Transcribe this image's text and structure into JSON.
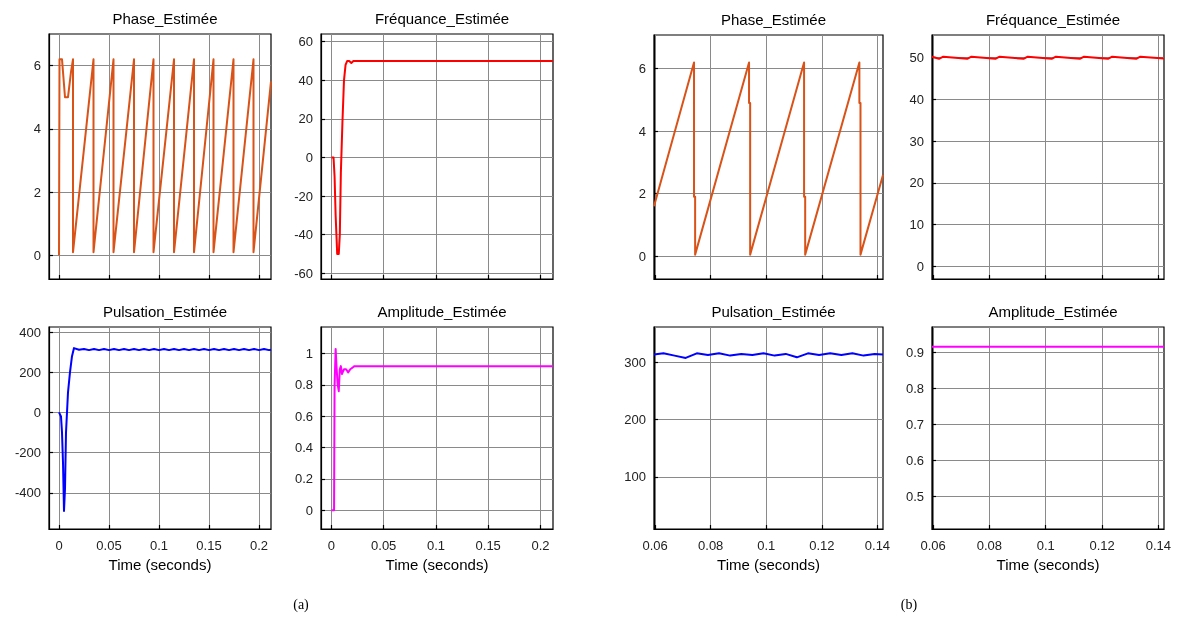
{
  "chart_data": [
    {
      "type": "line",
      "title": "Phase_Estimée",
      "color": "#d95319",
      "marker": "none",
      "grid": true,
      "tick_labels": "y",
      "xlim": [
        -0.01,
        0.212
      ],
      "xticks": [
        0,
        0.05,
        0.1,
        0.15,
        0.2
      ],
      "ylim": [
        -0.75,
        7
      ],
      "yticks": [
        0,
        2,
        4,
        6
      ],
      "x": [
        0,
        0.0005,
        0.003,
        0.006,
        0.009,
        0.012,
        0.014,
        0.014,
        0.0345,
        0.0345,
        0.0545,
        0.0545,
        0.075,
        0.075,
        0.0945,
        0.0945,
        0.115,
        0.115,
        0.135,
        0.135,
        0.1545,
        0.1545,
        0.1745,
        0.1745,
        0.1945,
        0.1945,
        0.212
      ],
      "values": [
        0,
        6.2,
        6.2,
        5.0,
        5.0,
        5.8,
        6.2,
        0.1,
        6.2,
        0.1,
        6.2,
        0.1,
        6.2,
        0.1,
        6.2,
        0.1,
        6.2,
        0.1,
        6.2,
        0.1,
        6.2,
        0.1,
        6.2,
        0.1,
        6.2,
        0.1,
        5.5
      ]
    },
    {
      "type": "line",
      "title": "Fréquance_Estimée",
      "color": "#ff0000",
      "marker": "none",
      "grid": true,
      "tick_labels": "y",
      "xlim": [
        -0.01,
        0.212
      ],
      "xticks": [
        0,
        0.05,
        0.1,
        0.15,
        0.2
      ],
      "ylim": [
        -63,
        64
      ],
      "yticks": [
        -60,
        -40,
        -20,
        0,
        20,
        40,
        60
      ],
      "x": [
        0,
        0.002,
        0.003,
        0.004,
        0.0055,
        0.007,
        0.008,
        0.009,
        0.0105,
        0.012,
        0.0135,
        0.015,
        0.017,
        0.019,
        0.021,
        0.212
      ],
      "values": [
        0,
        0,
        -10,
        -30,
        -50,
        -50,
        -40,
        -8,
        18,
        40,
        48,
        50,
        50,
        49,
        50,
        50
      ]
    },
    {
      "type": "line",
      "title": "Pulsation_Estimée",
      "xlabel": "Time (seconds)",
      "color": "#0000ff",
      "marker": "none",
      "grid": true,
      "xlim": [
        -0.01,
        0.212
      ],
      "xticks": [
        0,
        0.05,
        0.1,
        0.15,
        0.2
      ],
      "ylim": [
        -580,
        425
      ],
      "yticks": [
        -400,
        -200,
        0,
        200,
        400
      ],
      "annotations": [
        "(a)"
      ],
      "x": [
        0,
        0.002,
        0.003,
        0.004,
        0.005,
        0.006,
        0.007,
        0.009,
        0.011,
        0.013,
        0.015,
        0.02,
        0.025,
        0.03,
        0.035,
        0.04,
        0.045,
        0.05,
        0.055,
        0.06,
        0.065,
        0.07,
        0.075,
        0.08,
        0.085,
        0.09,
        0.095,
        0.1,
        0.105,
        0.11,
        0.115,
        0.12,
        0.125,
        0.13,
        0.135,
        0.14,
        0.145,
        0.15,
        0.155,
        0.16,
        0.165,
        0.17,
        0.175,
        0.18,
        0.185,
        0.19,
        0.195,
        0.2,
        0.205,
        0.21,
        0.212
      ],
      "values": [
        0,
        -20,
        -100,
        -250,
        -490,
        -380,
        -100,
        100,
        200,
        280,
        320,
        312,
        316,
        310,
        316,
        310,
        316,
        310,
        316,
        310,
        316,
        310,
        316,
        310,
        316,
        310,
        316,
        310,
        316,
        310,
        316,
        310,
        316,
        310,
        316,
        310,
        316,
        310,
        316,
        310,
        316,
        310,
        316,
        310,
        316,
        310,
        316,
        310,
        316,
        310,
        312
      ]
    },
    {
      "type": "line",
      "title": "Amplitude_Estimée",
      "xlabel": "Time (seconds)",
      "color": "#ff00ff",
      "marker": "none",
      "grid": true,
      "xlim": [
        -0.01,
        0.212
      ],
      "xticks": [
        0,
        0.05,
        0.1,
        0.15,
        0.2
      ],
      "ylim": [
        -0.12,
        1.17
      ],
      "yticks": [
        0,
        0.2,
        0.4,
        0.6,
        0.8,
        1
      ],
      "x": [
        0,
        0.0025,
        0.003,
        0.004,
        0.005,
        0.006,
        0.007,
        0.008,
        0.009,
        0.01,
        0.012,
        0.014,
        0.016,
        0.018,
        0.02,
        0.022,
        0.025,
        0.212
      ],
      "values": [
        0,
        0,
        0.8,
        1.03,
        0.9,
        0.8,
        0.76,
        0.9,
        0.92,
        0.87,
        0.9,
        0.9,
        0.88,
        0.9,
        0.91,
        0.92,
        0.92,
        0.92
      ]
    },
    {
      "type": "line",
      "title": "Phase_Estimée",
      "color": "#d95319",
      "marker": "none",
      "grid": true,
      "tick_labels": "y",
      "xlim": [
        0.0596,
        0.142
      ],
      "xticks": [
        0.06,
        0.08,
        0.1,
        0.12,
        0.14
      ],
      "ylim": [
        -0.73,
        7.08
      ],
      "yticks": [
        0,
        2,
        4,
        6
      ],
      "x": [
        0.0596,
        0.074,
        0.074,
        0.0744,
        0.0744,
        0.0938,
        0.0938,
        0.0942,
        0.0942,
        0.1136,
        0.1136,
        0.114,
        0.114,
        0.1335,
        0.1335,
        0.1339,
        0.1339,
        0.142
      ],
      "values": [
        1.6,
        6.2,
        1.9,
        1.9,
        0.05,
        6.2,
        4.9,
        4.9,
        0.05,
        6.2,
        1.9,
        1.9,
        0.05,
        6.2,
        4.9,
        4.9,
        0.05,
        2.6
      ]
    },
    {
      "type": "line",
      "title": "Fréquance_Estimée",
      "color": "#ff0000",
      "marker": "none",
      "grid": true,
      "tick_labels": "y",
      "xlim": [
        0.0596,
        0.142
      ],
      "xticks": [
        0.06,
        0.08,
        0.1,
        0.12,
        0.14
      ],
      "ylim": [
        -3,
        55.4
      ],
      "yticks": [
        0,
        10,
        20,
        30,
        40,
        50
      ],
      "x": [
        0.0596,
        0.0621,
        0.0636,
        0.0721,
        0.0736,
        0.0821,
        0.0836,
        0.0921,
        0.0936,
        0.1021,
        0.1036,
        0.1121,
        0.1136,
        0.1221,
        0.1236,
        0.1321,
        0.1336,
        0.142
      ],
      "values": [
        50.2,
        49.7,
        50.2,
        49.7,
        50.2,
        49.7,
        50.2,
        49.7,
        50.2,
        49.7,
        50.2,
        49.7,
        50.2,
        49.7,
        50.2,
        49.7,
        50.2,
        49.8
      ]
    },
    {
      "type": "line",
      "title": "Pulsation_Estimée",
      "xlabel": "Time (seconds)",
      "color": "#0000ff",
      "marker": "none",
      "grid": true,
      "xlim": [
        0.0596,
        0.142
      ],
      "xticks": [
        0.06,
        0.08,
        0.1,
        0.12,
        0.14
      ],
      "ylim": [
        9,
        362
      ],
      "yticks": [
        100,
        200,
        300
      ],
      "annotations": [
        "(b)"
      ],
      "x": [
        0.0596,
        0.063,
        0.067,
        0.071,
        0.075,
        0.079,
        0.083,
        0.087,
        0.091,
        0.095,
        0.099,
        0.103,
        0.107,
        0.111,
        0.115,
        0.119,
        0.123,
        0.127,
        0.131,
        0.135,
        0.139,
        0.142
      ],
      "values": [
        314,
        316,
        312,
        308,
        316,
        313,
        316,
        312,
        315,
        313,
        316,
        312,
        315,
        309,
        316,
        313,
        316,
        313,
        316,
        312,
        315,
        314
      ]
    },
    {
      "type": "line",
      "title": "Amplitude_Estimée",
      "xlabel": "Time (seconds)",
      "color": "#ff00ff",
      "marker": "none",
      "grid": true,
      "xlim": [
        0.0596,
        0.142
      ],
      "xticks": [
        0.06,
        0.08,
        0.1,
        0.12,
        0.14
      ],
      "ylim": [
        0.41,
        0.97
      ],
      "yticks": [
        0.5,
        0.6,
        0.7,
        0.8,
        0.9
      ],
      "x": [
        0.0596,
        0.142
      ],
      "values": [
        0.915,
        0.915
      ]
    }
  ]
}
